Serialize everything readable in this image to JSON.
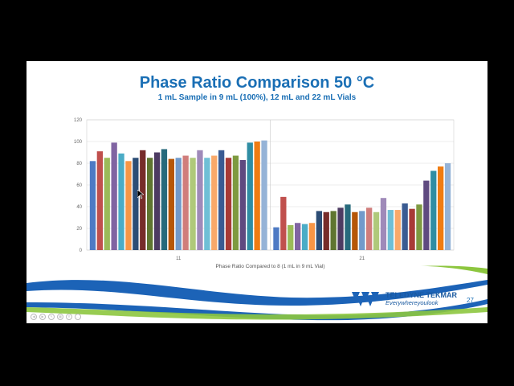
{
  "slide": {
    "title": "Phase Ratio Comparison 50 °C",
    "subtitle": "1 mL Sample in 9 mL (100%), 12 mL and 22 mL Vials",
    "page_number": "27",
    "logo_name": "TELEDYNE TEKMAR",
    "logo_tagline": "Everywhereyoulook"
  },
  "chart_data": {
    "type": "bar",
    "title": "",
    "xlabel": "Phase Ratio Compared to 8 (1 mL in 9 mL Vial)",
    "ylabel": "",
    "ylim": [
      0,
      120
    ],
    "yticks": [
      "0",
      "20",
      "40",
      "60",
      "80",
      "100",
      "120"
    ],
    "grid": true,
    "groups": [
      {
        "label": "11",
        "values": [
          82,
          91,
          85,
          99,
          89,
          82,
          85,
          92,
          85,
          90,
          93,
          84,
          85,
          87,
          85,
          92,
          85,
          87,
          92,
          85,
          87,
          83,
          99,
          100,
          101
        ]
      },
      {
        "label": "21",
        "values": [
          21,
          49,
          23,
          25,
          24,
          25,
          36,
          35,
          36,
          39,
          42,
          35,
          36,
          39,
          35,
          48,
          37,
          37,
          43,
          38,
          42,
          64,
          73,
          77,
          80
        ]
      }
    ],
    "colors": [
      "#4e7ac4",
      "#c0504d",
      "#9bbb59",
      "#8064a2",
      "#4bacc6",
      "#f79646",
      "#2c4d75",
      "#772c2a",
      "#5f7530",
      "#4d3b62",
      "#276a7c",
      "#b65708",
      "#729aca",
      "#d07d7b",
      "#afc97a",
      "#9f8ab9",
      "#6fbfd6",
      "#f9a96a",
      "#3a5b92",
      "#a83a36",
      "#7e9a40",
      "#5f4a80",
      "#2f8da3",
      "#f07c12",
      "#95b3d7"
    ]
  }
}
